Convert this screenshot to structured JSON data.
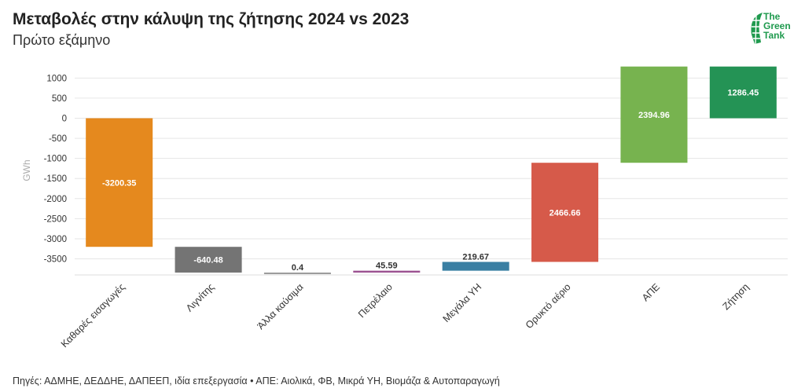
{
  "chart_data": {
    "type": "waterfall",
    "title": "Μεταβολές στην κάλυψη της ζήτησης 2024 vs 2023",
    "subtitle": "Πρώτο εξάμηνο",
    "ylabel": "GWh",
    "xlabel": "",
    "ylim": [
      -3900,
      1300
    ],
    "yticks": [
      1000,
      500,
      0,
      -500,
      -1000,
      -1500,
      -2000,
      -2500,
      -3000,
      -3500
    ],
    "grid": true,
    "categories": [
      "Καθαρές εισαγωγές",
      "Λιγνίτης",
      "Άλλα καύσιμα",
      "Πετρέλαιο",
      "Μεγάλα ΥΗ",
      "Ορυκτό αέριο",
      "ΑΠΕ",
      "Ζήτηση"
    ],
    "values": [
      -3200.35,
      -640.48,
      0.4,
      45.59,
      219.67,
      2466.66,
      2394.96,
      1286.45
    ],
    "labels": [
      "-3200.35",
      "-640.48",
      "0.4",
      "45.59",
      "219.67",
      "2466.66",
      "2394.96",
      "1286.45"
    ],
    "bar_types": [
      "change",
      "change",
      "change",
      "change",
      "change",
      "change",
      "change",
      "total"
    ],
    "colors": [
      "#e5891e",
      "#747474",
      "#9a9a9a",
      "#9a4f8f",
      "#3a7fa3",
      "#d65a4a",
      "#77b34f",
      "#249355"
    ]
  },
  "source": "Πηγές: ΑΔΜΗΕ, ΔΕΔΔΗΕ, ΔΑΠΕΕΠ, ιδία επεξεργασία • ΑΠΕ: Αιολικά, ΦΒ, Μικρά ΥΗ, Βιομάζα & Αυτοπαραγωγή",
  "logo": {
    "line1": "The",
    "line2": "Green",
    "line3": "Tank",
    "color": "#1f9a4e"
  }
}
